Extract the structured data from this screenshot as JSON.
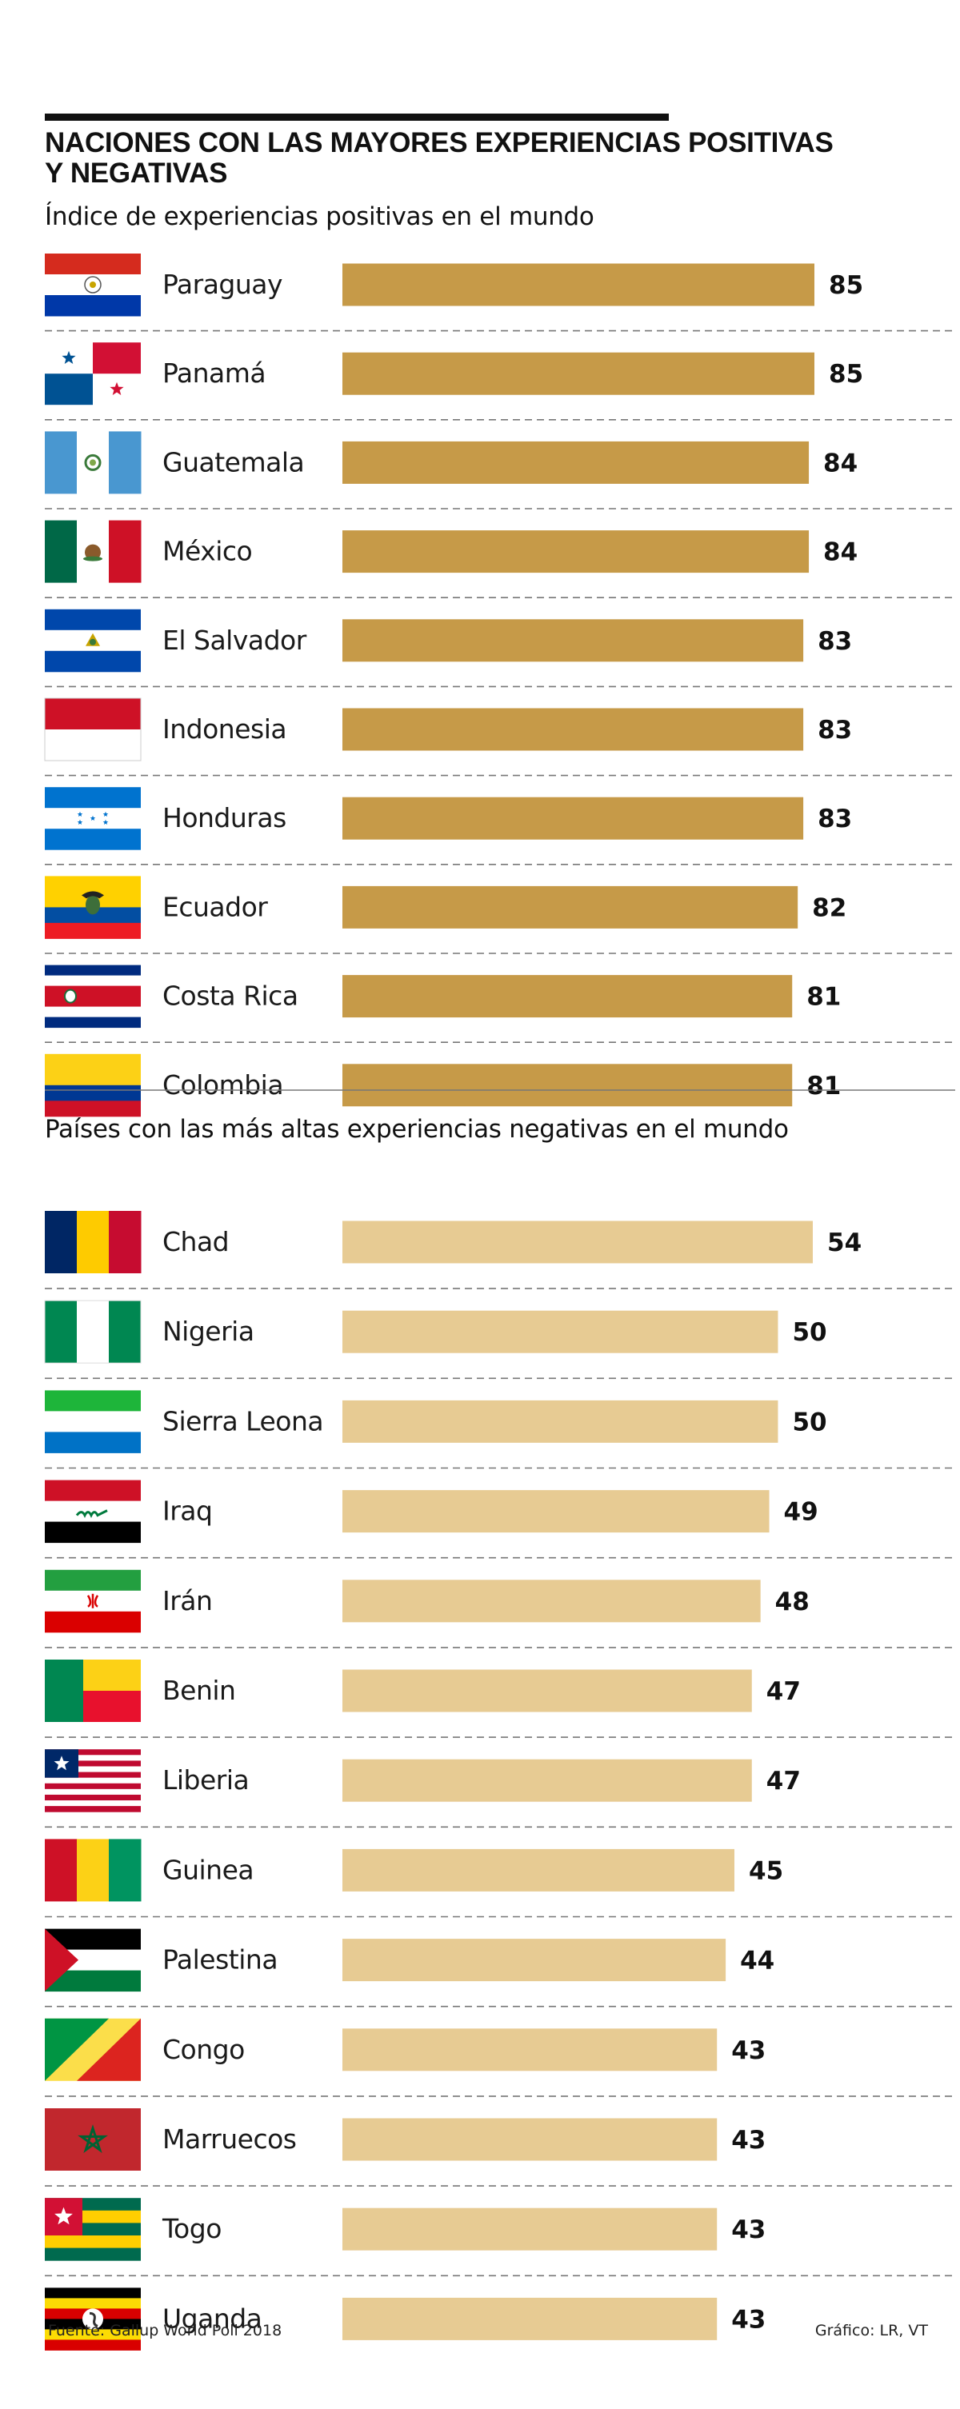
{
  "title": "NACIONES CON LAS MAYORES EXPERIENCIAS POSITIVAS Y NEGATIVAS",
  "source": "Fuente: Gallup World Poll 2018",
  "credit": "Gráfico: LR, VT",
  "chart_data": [
    {
      "type": "bar",
      "orientation": "horizontal",
      "title": "Índice de experiencias positivas en el mundo",
      "color": "#c69a48",
      "xlim": [
        0,
        100
      ],
      "grid": false,
      "categories": [
        "Paraguay",
        "Panamá",
        "Guatemala",
        "México",
        "El Salvador",
        "Indonesia",
        "Honduras",
        "Ecuador",
        "Costa Rica",
        "Colombia"
      ],
      "flags": [
        "flag-paraguay",
        "flag-panama",
        "flag-guatemala",
        "flag-mexico",
        "flag-el-salvador",
        "flag-indonesia",
        "flag-honduras",
        "flag-ecuador",
        "flag-costa-rica",
        "flag-colombia"
      ],
      "values": [
        85,
        85,
        84,
        84,
        83,
        83,
        83,
        82,
        81,
        81
      ]
    },
    {
      "type": "bar",
      "orientation": "horizontal",
      "title": "Países con las más altas experiencias negativas en el mundo",
      "color": "#e7cb93",
      "xlim": [
        0,
        63
      ],
      "grid": false,
      "categories": [
        "Chad",
        "Nigeria",
        "Sierra Leona",
        "Iraq",
        "Irán",
        "Benin",
        "Liberia",
        "Guinea",
        "Palestina",
        "Congo",
        "Marruecos",
        "Togo",
        "Uganda"
      ],
      "flags": [
        "flag-chad",
        "flag-nigeria",
        "flag-sierra-leone",
        "flag-iraq",
        "flag-iran",
        "flag-benin",
        "flag-liberia",
        "flag-guinea",
        "flag-palestine",
        "flag-congo",
        "flag-morocco",
        "flag-togo",
        "flag-uganda"
      ],
      "values": [
        54,
        50,
        50,
        49,
        48,
        47,
        47,
        45,
        44,
        43,
        43,
        43,
        43
      ]
    }
  ]
}
